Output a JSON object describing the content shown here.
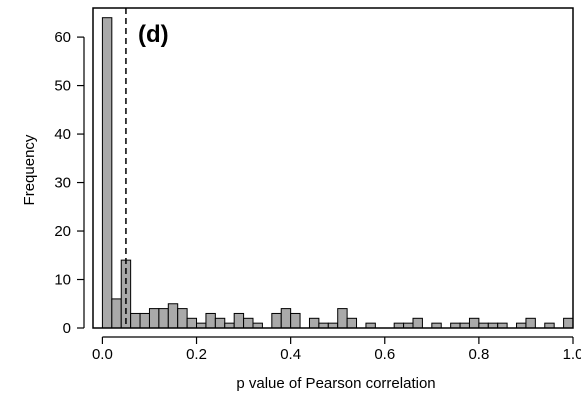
{
  "chart_data": {
    "type": "bar",
    "panel_label": "(d)",
    "xlabel": "p value of Pearson correlation",
    "ylabel": "Frequency",
    "xlim": [
      -0.02,
      1.0
    ],
    "ylim": [
      0,
      66
    ],
    "xticks": [
      0.0,
      0.2,
      0.4,
      0.6,
      0.8,
      1.0
    ],
    "xtick_labels": [
      "0.0",
      "0.2",
      "0.4",
      "0.6",
      "0.8",
      "1.0"
    ],
    "yticks": [
      0,
      10,
      20,
      30,
      40,
      50,
      60
    ],
    "ytick_labels": [
      "0",
      "10",
      "20",
      "30",
      "40",
      "50",
      "60"
    ],
    "bin_width": 0.02,
    "bin_starts": [
      0.0,
      0.02,
      0.04,
      0.06,
      0.08,
      0.1,
      0.12,
      0.14,
      0.16,
      0.18,
      0.2,
      0.22,
      0.24,
      0.26,
      0.28,
      0.3,
      0.32,
      0.34,
      0.36,
      0.38,
      0.4,
      0.42,
      0.44,
      0.46,
      0.48,
      0.5,
      0.52,
      0.54,
      0.56,
      0.58,
      0.6,
      0.62,
      0.64,
      0.66,
      0.68,
      0.7,
      0.72,
      0.74,
      0.76,
      0.78,
      0.8,
      0.82,
      0.84,
      0.86,
      0.88,
      0.9,
      0.92,
      0.94,
      0.96,
      0.98
    ],
    "values": [
      64,
      6,
      14,
      3,
      3,
      4,
      4,
      5,
      4,
      2,
      1,
      3,
      2,
      1,
      3,
      2,
      1,
      0,
      3,
      4,
      3,
      0,
      2,
      1,
      1,
      4,
      2,
      0,
      1,
      0,
      0,
      1,
      1,
      2,
      0,
      1,
      0,
      1,
      1,
      2,
      1,
      1,
      1,
      0,
      1,
      2,
      0,
      1,
      0,
      2
    ],
    "vline": 0.05,
    "vline_style": "dashed",
    "bar_color": "#a9a9a9",
    "edge_color": "#000000",
    "grid": false
  }
}
